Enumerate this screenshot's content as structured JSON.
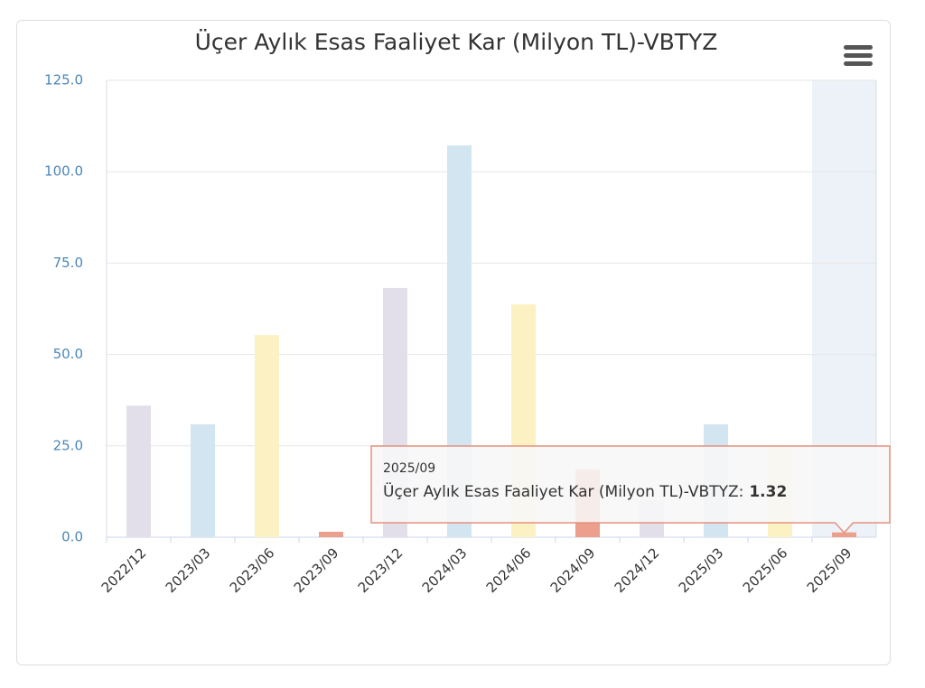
{
  "chart_data": {
    "type": "bar",
    "title": "Üçer Aylık Esas Faaliyet Kar (Milyon TL)-VBTYZ",
    "categories": [
      "2022/12",
      "2023/03",
      "2023/06",
      "2023/09",
      "2023/12",
      "2024/03",
      "2024/06",
      "2024/09",
      "2024/12",
      "2025/03",
      "2025/06",
      "2025/09"
    ],
    "series": [
      {
        "name": "Üçer Aylık Esas Faaliyet Kar (Milyon TL)-VBTYZ",
        "colors": [
          "#e3dfea",
          "#d2e5f1",
          "#fcf1c2",
          "#ec9f8c",
          "#e3dfea",
          "#d2e5f1",
          "#fcf1c2",
          "#ec9f8c",
          "#e3dfea",
          "#d2e5f1",
          "#fcf1c2",
          "#ec9f8c"
        ],
        "values": [
          36,
          30.9,
          55.3,
          1.5,
          68.2,
          107.2,
          63.7,
          18.5,
          10,
          30.9,
          25,
          1.32
        ]
      }
    ],
    "ylim": [
      0,
      125
    ],
    "yticks": [
      {
        "value": 0,
        "label": "0.0"
      },
      {
        "value": 25,
        "label": "25.0"
      },
      {
        "value": 50,
        "label": "50.0"
      },
      {
        "value": 75,
        "label": "75.0"
      },
      {
        "value": 100,
        "label": "100.0"
      },
      {
        "value": 125,
        "label": "125.0"
      }
    ],
    "grid": true,
    "tooltip": {
      "index": 11,
      "text": "Üçer Aylık Esas Faaliyet Kar (Milyon TL)-VBTYZ:"
    }
  }
}
